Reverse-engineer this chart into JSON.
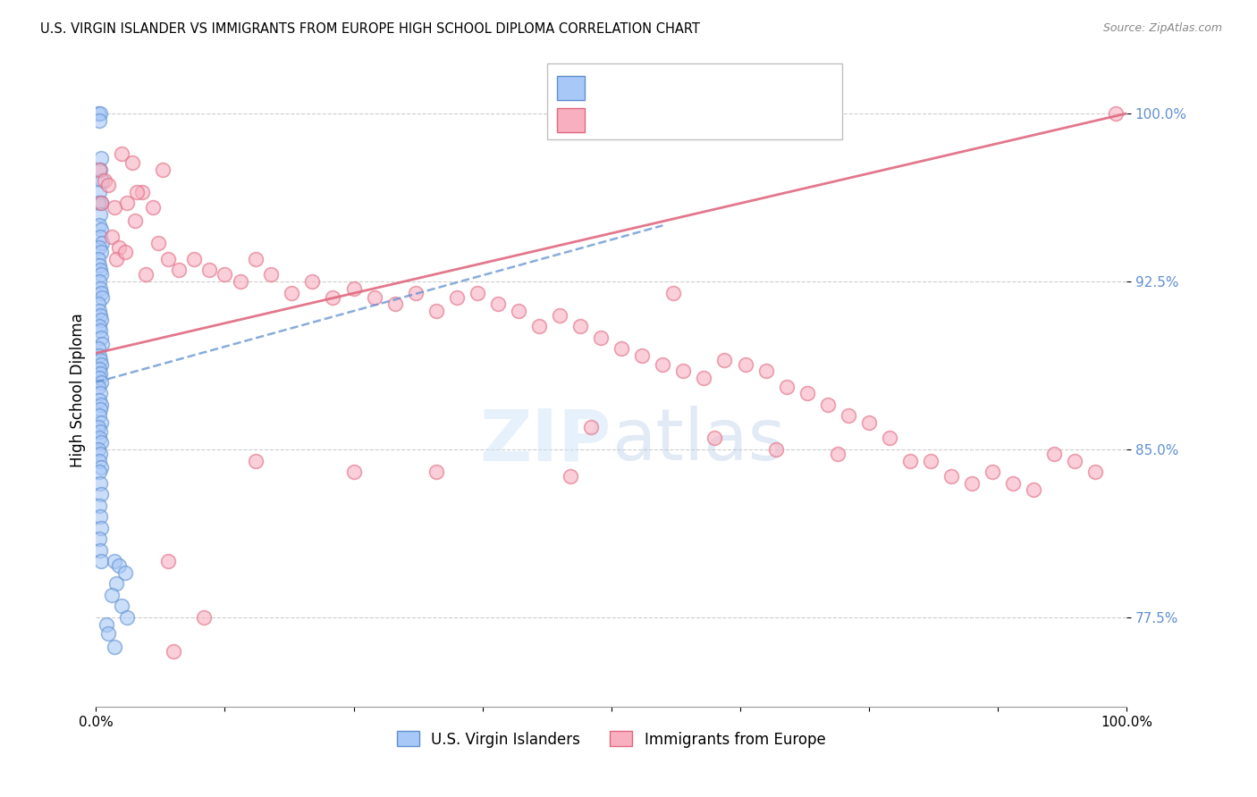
{
  "title": "U.S. VIRGIN ISLANDER VS IMMIGRANTS FROM EUROPE HIGH SCHOOL DIPLOMA CORRELATION CHART",
  "source": "Source: ZipAtlas.com",
  "ylabel": "High School Diploma",
  "xlim": [
    0.0,
    1.0
  ],
  "ylim": [
    0.735,
    1.018
  ],
  "yticks": [
    0.775,
    0.85,
    0.925,
    1.0
  ],
  "ytick_labels": [
    "77.5%",
    "85.0%",
    "92.5%",
    "100.0%"
  ],
  "xticks": [
    0.0,
    0.125,
    0.25,
    0.375,
    0.5,
    0.625,
    0.75,
    0.875,
    1.0
  ],
  "xtick_labels": [
    "0.0%",
    "",
    "",
    "",
    "",
    "",
    "",
    "",
    "100.0%"
  ],
  "blue_color": "#a8c8f8",
  "pink_color": "#f8b0c0",
  "trendline_blue_color": "#6090d0",
  "trendline_pink_color": "#e06880",
  "watermark_color": "#d0e4f8",
  "blue_scatter_x": [
    0.002,
    0.004,
    0.003,
    0.005,
    0.004,
    0.006,
    0.003,
    0.005,
    0.002,
    0.004,
    0.003,
    0.005,
    0.004,
    0.006,
    0.003,
    0.005,
    0.002,
    0.003,
    0.004,
    0.005,
    0.003,
    0.004,
    0.005,
    0.006,
    0.002,
    0.003,
    0.004,
    0.005,
    0.003,
    0.004,
    0.005,
    0.006,
    0.002,
    0.003,
    0.004,
    0.005,
    0.003,
    0.004,
    0.003,
    0.005,
    0.002,
    0.004,
    0.003,
    0.005,
    0.004,
    0.003,
    0.005,
    0.002,
    0.004,
    0.003,
    0.005,
    0.002,
    0.004,
    0.003,
    0.005,
    0.003,
    0.004,
    0.005,
    0.003,
    0.004,
    0.005,
    0.003,
    0.004,
    0.005,
    0.018,
    0.022,
    0.028,
    0.02,
    0.015,
    0.025,
    0.03,
    0.01,
    0.012,
    0.018
  ],
  "blue_scatter_y": [
    1.0,
    1.0,
    0.997,
    0.98,
    0.975,
    0.97,
    0.965,
    0.96,
    0.96,
    0.955,
    0.95,
    0.948,
    0.945,
    0.942,
    0.94,
    0.938,
    0.935,
    0.932,
    0.93,
    0.928,
    0.925,
    0.922,
    0.92,
    0.918,
    0.915,
    0.912,
    0.91,
    0.908,
    0.905,
    0.903,
    0.9,
    0.897,
    0.895,
    0.892,
    0.89,
    0.888,
    0.886,
    0.884,
    0.882,
    0.88,
    0.878,
    0.875,
    0.872,
    0.87,
    0.868,
    0.865,
    0.862,
    0.86,
    0.858,
    0.855,
    0.853,
    0.85,
    0.848,
    0.845,
    0.842,
    0.84,
    0.835,
    0.83,
    0.825,
    0.82,
    0.815,
    0.81,
    0.805,
    0.8,
    0.8,
    0.798,
    0.795,
    0.79,
    0.785,
    0.78,
    0.775,
    0.772,
    0.768,
    0.762
  ],
  "pink_scatter_x": [
    0.003,
    0.008,
    0.012,
    0.005,
    0.018,
    0.025,
    0.035,
    0.045,
    0.015,
    0.022,
    0.03,
    0.04,
    0.055,
    0.065,
    0.02,
    0.028,
    0.038,
    0.048,
    0.06,
    0.07,
    0.08,
    0.095,
    0.11,
    0.125,
    0.14,
    0.155,
    0.17,
    0.19,
    0.21,
    0.23,
    0.25,
    0.27,
    0.29,
    0.31,
    0.33,
    0.35,
    0.37,
    0.39,
    0.41,
    0.43,
    0.45,
    0.47,
    0.49,
    0.51,
    0.53,
    0.55,
    0.57,
    0.59,
    0.61,
    0.63,
    0.65,
    0.67,
    0.69,
    0.71,
    0.73,
    0.75,
    0.77,
    0.79,
    0.81,
    0.83,
    0.85,
    0.87,
    0.89,
    0.91,
    0.93,
    0.95,
    0.97,
    0.99,
    0.6,
    0.66,
    0.72,
    0.48,
    0.155,
    0.33,
    0.25,
    0.46,
    0.56,
    0.07,
    0.105,
    0.075
  ],
  "pink_scatter_y": [
    0.975,
    0.97,
    0.968,
    0.96,
    0.958,
    0.982,
    0.978,
    0.965,
    0.945,
    0.94,
    0.96,
    0.965,
    0.958,
    0.975,
    0.935,
    0.938,
    0.952,
    0.928,
    0.942,
    0.935,
    0.93,
    0.935,
    0.93,
    0.928,
    0.925,
    0.935,
    0.928,
    0.92,
    0.925,
    0.918,
    0.922,
    0.918,
    0.915,
    0.92,
    0.912,
    0.918,
    0.92,
    0.915,
    0.912,
    0.905,
    0.91,
    0.905,
    0.9,
    0.895,
    0.892,
    0.888,
    0.885,
    0.882,
    0.89,
    0.888,
    0.885,
    0.878,
    0.875,
    0.87,
    0.865,
    0.862,
    0.855,
    0.845,
    0.845,
    0.838,
    0.835,
    0.84,
    0.835,
    0.832,
    0.848,
    0.845,
    0.84,
    1.0,
    0.855,
    0.85,
    0.848,
    0.86,
    0.845,
    0.84,
    0.84,
    0.838,
    0.92,
    0.8,
    0.775,
    0.76
  ],
  "pink_trend_x0": 0.0,
  "pink_trend_x1": 1.0,
  "pink_trend_y0": 0.893,
  "pink_trend_y1": 1.0,
  "blue_trend_x0": 0.0,
  "blue_trend_x1": 0.55,
  "blue_trend_y0": 0.88,
  "blue_trend_y1": 0.95
}
